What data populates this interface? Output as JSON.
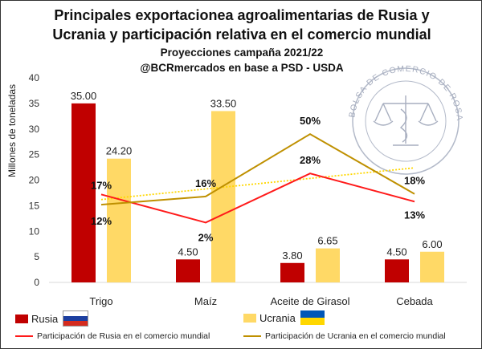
{
  "title_line1": "Principales exportacionea agroalimentarias de Rusia y",
  "title_line2": "Ucrania y participación relativa en el comercio mundial",
  "subtitle_line1": "Proyecciones campaña 2021/22",
  "subtitle_line2": "@BCRmercados en base a PSD - USDA",
  "seal_text": "BOLSA DE COMERCIO DE ROSARIO",
  "colors": {
    "rusia": "#c00000",
    "ucrania": "#ffd966",
    "line_rusia": "#ff1a1a",
    "line_ucrania": "#bf9000",
    "trend": "#ffd700",
    "flag_blue": "#0057b8",
    "flag_yellow": "#ffd700",
    "flag_ru_blue": "#1c3fa0",
    "flag_ru_red": "#d52b1e"
  },
  "legend": {
    "rusia": "Rusia",
    "ucrania": "Ucrania",
    "line_rusia": "Participación de Rusia en el comercio mundial",
    "line_ucrania": "Participación de Ucrania en el comercio mundial"
  },
  "chart_data": {
    "type": "bar",
    "categories": [
      "Trigo",
      "Maíz",
      "Aceite de Girasol",
      "Cebada"
    ],
    "ylabel": "Millones de toneladas",
    "ylim": [
      0,
      40
    ],
    "yticks": [
      0,
      5,
      10,
      15,
      20,
      25,
      30,
      35,
      40
    ],
    "series": [
      {
        "name": "Rusia",
        "values": [
          35.0,
          4.5,
          3.8,
          4.5
        ],
        "labels": [
          "35.00",
          "4.50",
          "3.80",
          "4.50"
        ]
      },
      {
        "name": "Ucrania",
        "values": [
          24.2,
          33.5,
          6.65,
          6.0
        ],
        "labels": [
          "24.20",
          "33.50",
          "6.65",
          "6.00"
        ]
      }
    ],
    "lines": [
      {
        "name": "Participación de Rusia en el comercio mundial",
        "positions_on_axis": [
          17.2,
          11.7,
          21.3,
          15.8
        ],
        "labels": [
          "17%",
          "2%",
          "28%",
          "13%"
        ]
      },
      {
        "name": "Participación de Ucrania en el comercio mundial",
        "positions_on_axis": [
          15.2,
          16.8,
          29.0,
          17.3
        ],
        "labels": [
          "12%",
          "16%",
          "50%",
          "18%"
        ]
      }
    ],
    "trendline": {
      "series": "Participación de Ucrania en el comercio mundial",
      "start": 16.2,
      "end": 22.4,
      "style": "dotted"
    },
    "grid": false,
    "legend_position": "bottom"
  }
}
